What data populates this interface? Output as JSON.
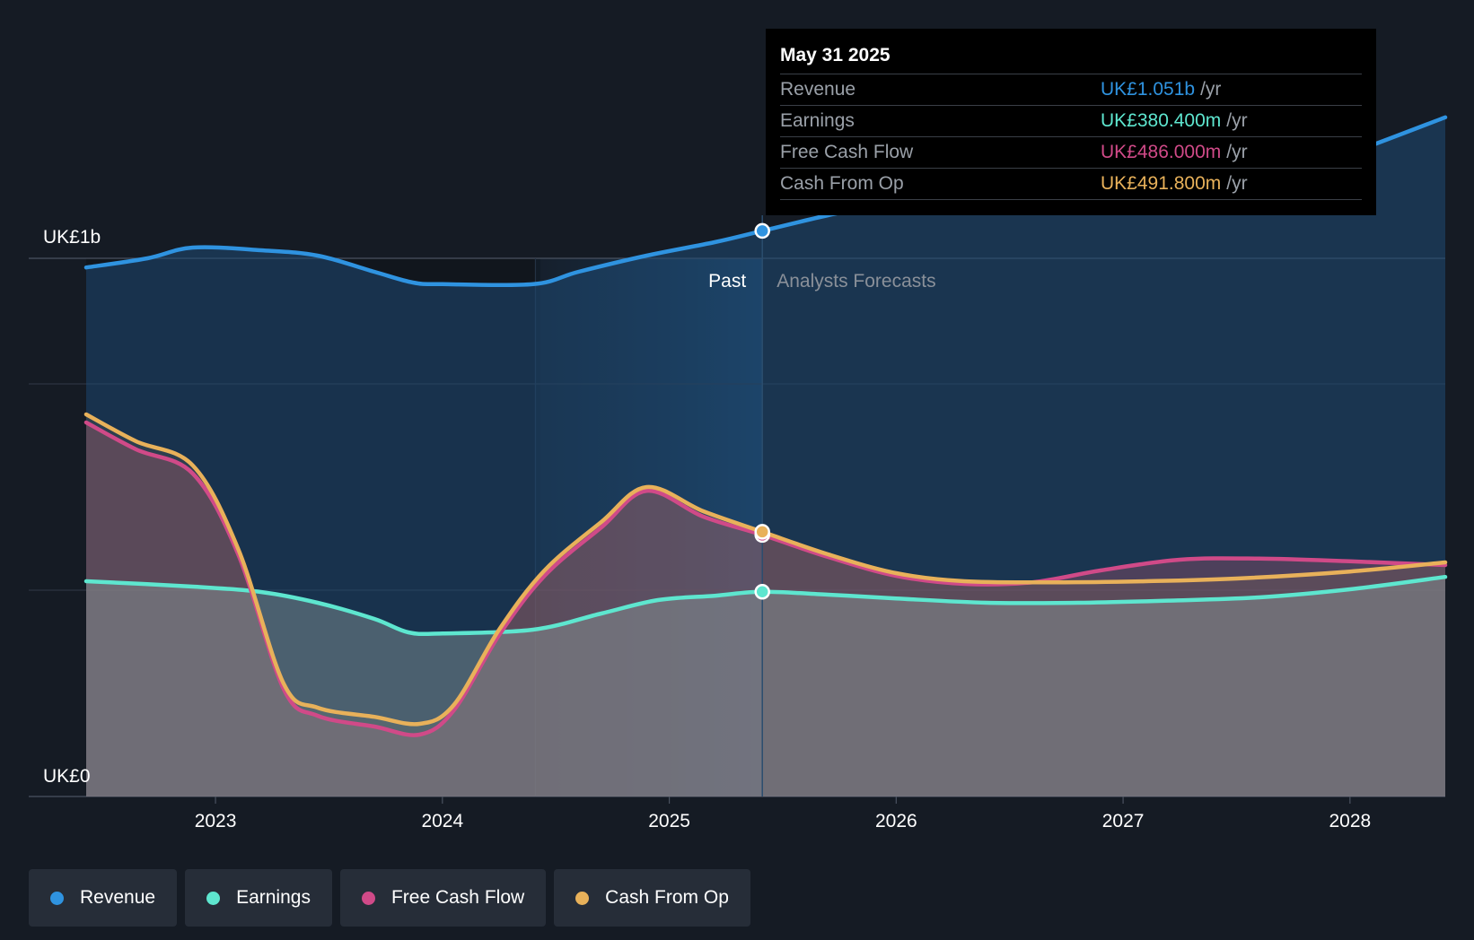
{
  "chart_data": {
    "type": "area",
    "y_axis": {
      "top_label": "UK£1b",
      "bottom_label": "UK£0",
      "ylim": [
        0,
        1.3
      ]
    },
    "x_axis": {
      "ticks": [
        "2023",
        "2024",
        "2025",
        "2026",
        "2027",
        "2028"
      ],
      "xlim": [
        2022.43,
        2028.42
      ]
    },
    "past_label": "Past",
    "forecast_label": "Analysts Forecasts",
    "divider_x": 2025.41,
    "shade_start_x": 2024.41,
    "series": [
      {
        "key": "revenue",
        "name": "Revenue",
        "color": "#2f93e0",
        "points": [
          [
            2022.43,
            0.983
          ],
          [
            2022.7,
            1.0
          ],
          [
            2022.9,
            1.02
          ],
          [
            2023.2,
            1.015
          ],
          [
            2023.45,
            1.005
          ],
          [
            2023.7,
            0.975
          ],
          [
            2023.87,
            0.955
          ],
          [
            2024.0,
            0.952
          ],
          [
            2024.4,
            0.952
          ],
          [
            2024.6,
            0.975
          ],
          [
            2024.9,
            1.005
          ],
          [
            2025.2,
            1.03
          ],
          [
            2025.41,
            1.051
          ],
          [
            2025.7,
            1.08
          ],
          [
            2026.0,
            1.105
          ],
          [
            2026.4,
            1.125
          ],
          [
            2026.8,
            1.13
          ],
          [
            2027.2,
            1.133
          ],
          [
            2027.5,
            1.14
          ],
          [
            2027.75,
            1.16
          ],
          [
            2028.0,
            1.195
          ],
          [
            2028.42,
            1.262
          ]
        ]
      },
      {
        "key": "earnings",
        "name": "Earnings",
        "color": "#5ee6cf",
        "points": [
          [
            2022.43,
            0.4
          ],
          [
            2022.9,
            0.39
          ],
          [
            2023.2,
            0.38
          ],
          [
            2023.45,
            0.36
          ],
          [
            2023.7,
            0.33
          ],
          [
            2023.85,
            0.305
          ],
          [
            2024.0,
            0.303
          ],
          [
            2024.4,
            0.31
          ],
          [
            2024.7,
            0.34
          ],
          [
            2024.95,
            0.365
          ],
          [
            2025.2,
            0.373
          ],
          [
            2025.41,
            0.3804
          ],
          [
            2025.7,
            0.375
          ],
          [
            2026.0,
            0.368
          ],
          [
            2026.4,
            0.36
          ],
          [
            2026.8,
            0.36
          ],
          [
            2027.2,
            0.364
          ],
          [
            2027.6,
            0.37
          ],
          [
            2028.0,
            0.385
          ],
          [
            2028.42,
            0.408
          ]
        ]
      },
      {
        "key": "fcf",
        "name": "Free Cash Flow",
        "color": "#d04a88",
        "points": [
          [
            2022.43,
            0.695
          ],
          [
            2022.65,
            0.645
          ],
          [
            2022.9,
            0.6
          ],
          [
            2023.1,
            0.45
          ],
          [
            2023.3,
            0.2
          ],
          [
            2023.45,
            0.15
          ],
          [
            2023.7,
            0.13
          ],
          [
            2023.9,
            0.115
          ],
          [
            2024.05,
            0.16
          ],
          [
            2024.25,
            0.3
          ],
          [
            2024.45,
            0.41
          ],
          [
            2024.7,
            0.5
          ],
          [
            2024.9,
            0.568
          ],
          [
            2025.15,
            0.52
          ],
          [
            2025.41,
            0.486
          ],
          [
            2025.7,
            0.445
          ],
          [
            2026.0,
            0.41
          ],
          [
            2026.3,
            0.395
          ],
          [
            2026.6,
            0.398
          ],
          [
            2026.9,
            0.42
          ],
          [
            2027.25,
            0.44
          ],
          [
            2027.6,
            0.442
          ],
          [
            2028.0,
            0.437
          ],
          [
            2028.42,
            0.43
          ]
        ]
      },
      {
        "key": "cfo",
        "name": "Cash From Op",
        "color": "#e8b15a",
        "points": [
          [
            2022.43,
            0.71
          ],
          [
            2022.65,
            0.66
          ],
          [
            2022.9,
            0.615
          ],
          [
            2023.1,
            0.46
          ],
          [
            2023.3,
            0.21
          ],
          [
            2023.45,
            0.165
          ],
          [
            2023.7,
            0.148
          ],
          [
            2023.9,
            0.135
          ],
          [
            2024.05,
            0.17
          ],
          [
            2024.25,
            0.31
          ],
          [
            2024.45,
            0.42
          ],
          [
            2024.7,
            0.51
          ],
          [
            2024.9,
            0.575
          ],
          [
            2025.15,
            0.53
          ],
          [
            2025.41,
            0.4918
          ],
          [
            2025.7,
            0.45
          ],
          [
            2026.0,
            0.415
          ],
          [
            2026.3,
            0.4
          ],
          [
            2026.7,
            0.398
          ],
          [
            2027.1,
            0.4
          ],
          [
            2027.5,
            0.405
          ],
          [
            2028.0,
            0.418
          ],
          [
            2028.42,
            0.435
          ]
        ]
      }
    ]
  },
  "tooltip": {
    "date": "May 31 2025",
    "rows": [
      {
        "label": "Revenue",
        "value": "UK£1.051b",
        "unit": "/yr",
        "color": "#2f93e0"
      },
      {
        "label": "Earnings",
        "value": "UK£380.400m",
        "unit": "/yr",
        "color": "#5ee6cf"
      },
      {
        "label": "Free Cash Flow",
        "value": "UK£486.000m",
        "unit": "/yr",
        "color": "#d04a88"
      },
      {
        "label": "Cash From Op",
        "value": "UK£491.800m",
        "unit": "/yr",
        "color": "#e8b15a"
      }
    ]
  },
  "legend": [
    {
      "label": "Revenue",
      "color": "#2f93e0"
    },
    {
      "label": "Earnings",
      "color": "#5ee6cf"
    },
    {
      "label": "Free Cash Flow",
      "color": "#d04a88"
    },
    {
      "label": "Cash From Op",
      "color": "#e8b15a"
    }
  ]
}
